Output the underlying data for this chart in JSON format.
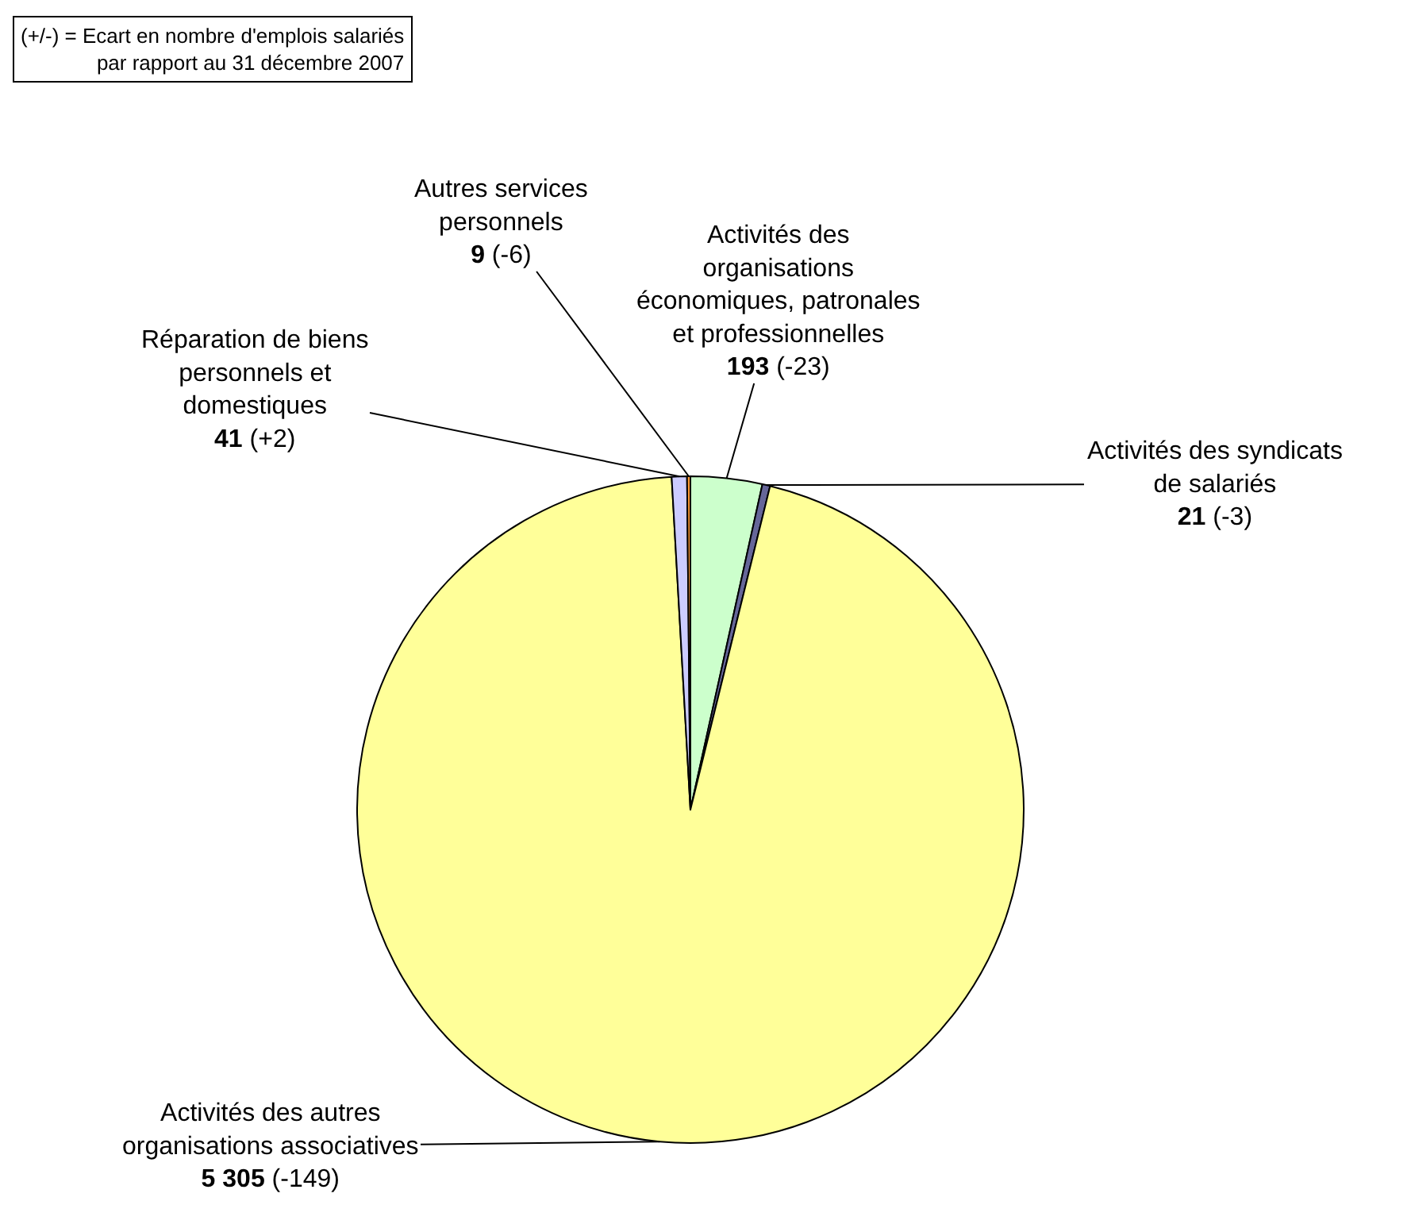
{
  "chart_data": {
    "type": "pie",
    "categories": [
      "Activités des organisations économiques, patronales et professionnelles",
      "Activités des syndicats de salariés",
      "Activités des autres organisations associatives",
      "Réparation de biens personnels et domestiques",
      "Autres services personnels"
    ],
    "values": [
      193,
      21,
      5305,
      41,
      9
    ],
    "value_labels": [
      "193 (-23)",
      "21 (-3)",
      "5 305 (-149)",
      "41 (+2)",
      "9 (-6)"
    ],
    "colors": [
      "#ccffcc",
      "#666699",
      "#ffff99",
      "#ccccff",
      "#ff9933"
    ],
    "annotations": [
      "(+/-) = Ecart en nombre d'emplois salariés\npar rapport au 31 décembre 2007"
    ],
    "legend": false
  }
}
